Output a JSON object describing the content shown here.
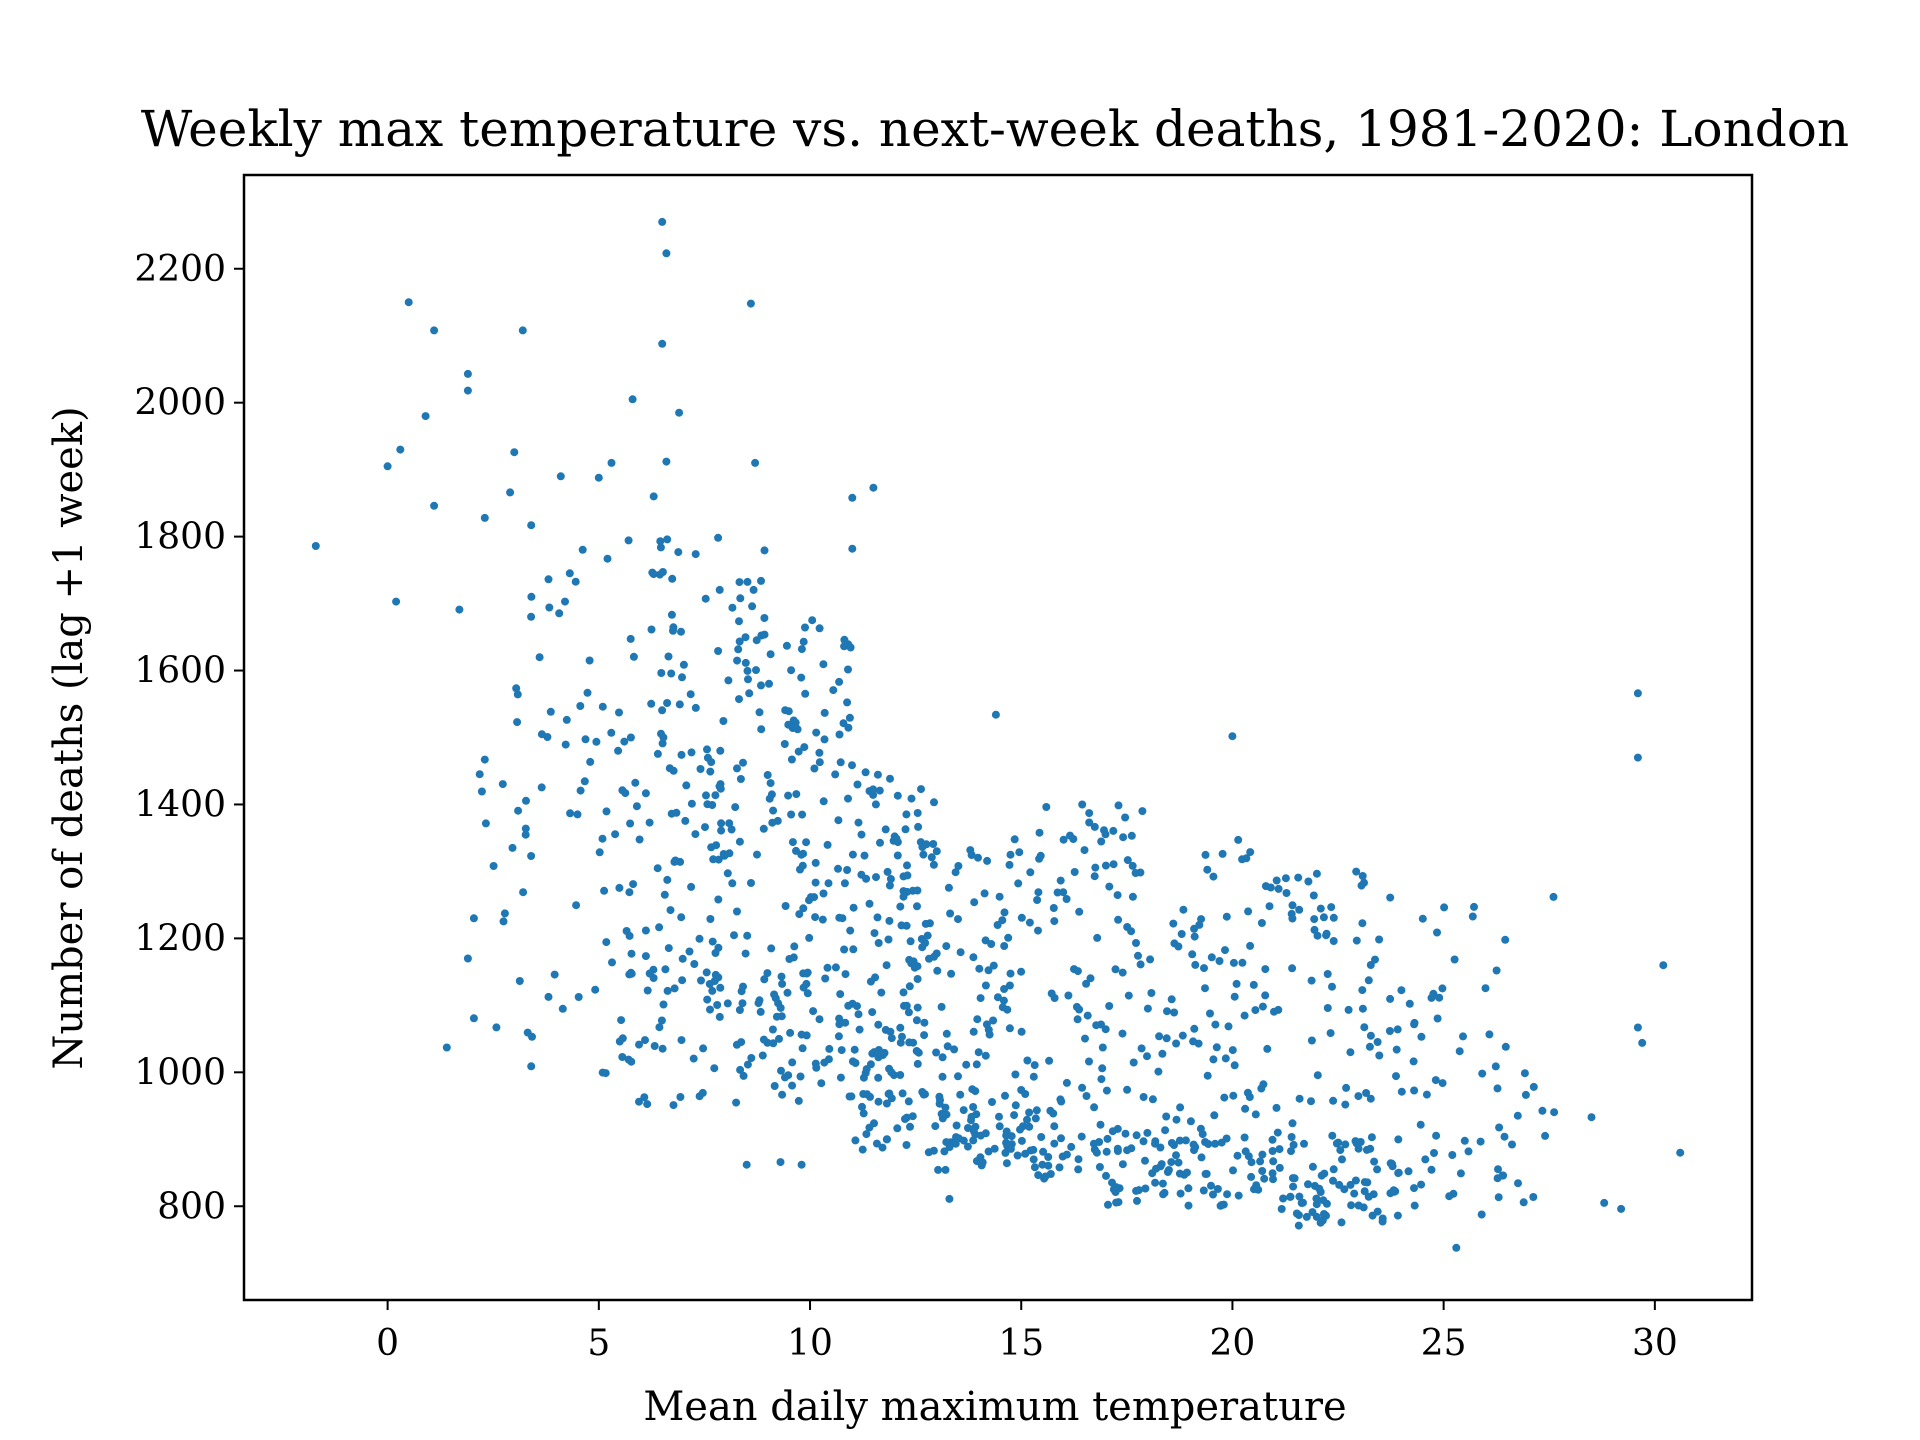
{
  "chart_data": {
    "type": "scatter",
    "title": "Weekly max temperature vs. next-week deaths, 1981-2020: London",
    "xlabel": "Mean daily maximum temperature",
    "ylabel": "Number of deaths (lag +1 week)",
    "xlim": [
      -3.4,
      32.3
    ],
    "ylim": [
      660,
      2340
    ],
    "xticks": [
      0,
      5,
      10,
      15,
      20,
      25,
      30
    ],
    "yticks": [
      800,
      1000,
      1200,
      1400,
      1600,
      1800,
      2000,
      2200
    ],
    "grid": false,
    "legend": "none",
    "color": "#1f77b4",
    "outliers": [
      [
        -1.7,
        1786
      ],
      [
        0.0,
        1905
      ],
      [
        0.2,
        1703
      ],
      [
        0.3,
        1930
      ],
      [
        0.5,
        2150
      ],
      [
        0.9,
        1980
      ],
      [
        1.1,
        2108
      ],
      [
        1.1,
        1846
      ],
      [
        1.4,
        1037
      ],
      [
        1.7,
        1691
      ],
      [
        1.9,
        2043
      ],
      [
        1.9,
        2018
      ],
      [
        1.9,
        1170
      ],
      [
        2.3,
        1828
      ],
      [
        2.3,
        1467
      ],
      [
        2.9,
        1866
      ],
      [
        3.0,
        1926
      ],
      [
        3.2,
        2108
      ],
      [
        3.4,
        1009
      ],
      [
        3.4,
        1817
      ],
      [
        4.1,
        1890
      ],
      [
        4.2,
        1703
      ],
      [
        5.0,
        1888
      ],
      [
        5.3,
        1910
      ],
      [
        5.8,
        2005
      ],
      [
        6.3,
        1860
      ],
      [
        6.5,
        2270
      ],
      [
        6.6,
        2223
      ],
      [
        6.5,
        2088
      ],
      [
        6.9,
        1985
      ],
      [
        6.6,
        1912
      ],
      [
        8.6,
        2148
      ],
      [
        8.7,
        1910
      ],
      [
        8.5,
        862
      ],
      [
        9.3,
        866
      ],
      [
        9.8,
        862
      ],
      [
        11.0,
        1858
      ],
      [
        11.0,
        1782
      ],
      [
        11.5,
        1873
      ],
      [
        13.3,
        811
      ],
      [
        14.4,
        1534
      ],
      [
        20.0,
        1502
      ],
      [
        25.3,
        738
      ],
      [
        27.6,
        1262
      ],
      [
        28.5,
        933
      ],
      [
        28.8,
        805
      ],
      [
        29.2,
        796
      ],
      [
        29.6,
        1566
      ],
      [
        29.6,
        1470
      ],
      [
        29.6,
        1067
      ],
      [
        29.7,
        1044
      ],
      [
        30.2,
        1160
      ],
      [
        30.6,
        880
      ]
    ],
    "bands": [
      {
        "x": [
          2,
          5
        ],
        "y": [
          1050,
          1500
        ],
        "n": 35
      },
      {
        "x": [
          3,
          6
        ],
        "y": [
          1500,
          1800
        ],
        "n": 25
      },
      {
        "x": [
          5,
          8
        ],
        "y": [
          950,
          1250
        ],
        "n": 60
      },
      {
        "x": [
          5,
          8
        ],
        "y": [
          1250,
          1550
        ],
        "n": 60
      },
      {
        "x": [
          6,
          9
        ],
        "y": [
          1550,
          1800
        ],
        "n": 45
      },
      {
        "x": [
          7.5,
          10
        ],
        "y": [
          1100,
          1450
        ],
        "n": 70
      },
      {
        "x": [
          8,
          11
        ],
        "y": [
          1450,
          1700
        ],
        "n": 55
      },
      {
        "x": [
          8,
          12
        ],
        "y": [
          950,
          1150
        ],
        "n": 80
      },
      {
        "x": [
          10,
          13
        ],
        "y": [
          1150,
          1450
        ],
        "n": 80
      },
      {
        "x": [
          11,
          14
        ],
        "y": [
          880,
          1050
        ],
        "n": 70
      },
      {
        "x": [
          12,
          15
        ],
        "y": [
          1050,
          1350
        ],
        "n": 70
      },
      {
        "x": [
          13,
          17
        ],
        "y": [
          840,
          960
        ],
        "n": 85
      },
      {
        "x": [
          14,
          18
        ],
        "y": [
          960,
          1250
        ],
        "n": 70
      },
      {
        "x": [
          15,
          18
        ],
        "y": [
          1250,
          1400
        ],
        "n": 40
      },
      {
        "x": [
          17,
          21
        ],
        "y": [
          800,
          920
        ],
        "n": 95
      },
      {
        "x": [
          18,
          21
        ],
        "y": [
          920,
          1250
        ],
        "n": 70
      },
      {
        "x": [
          19,
          22
        ],
        "y": [
          1250,
          1350
        ],
        "n": 15
      },
      {
        "x": [
          21,
          24
        ],
        "y": [
          770,
          900
        ],
        "n": 80
      },
      {
        "x": [
          21,
          24
        ],
        "y": [
          900,
          1300
        ],
        "n": 65
      },
      {
        "x": [
          24,
          27
        ],
        "y": [
          780,
          1000
        ],
        "n": 30
      },
      {
        "x": [
          24,
          26.5
        ],
        "y": [
          1000,
          1250
        ],
        "n": 25
      },
      {
        "x": [
          26,
          28
        ],
        "y": [
          790,
          1000
        ],
        "n": 12
      }
    ]
  }
}
